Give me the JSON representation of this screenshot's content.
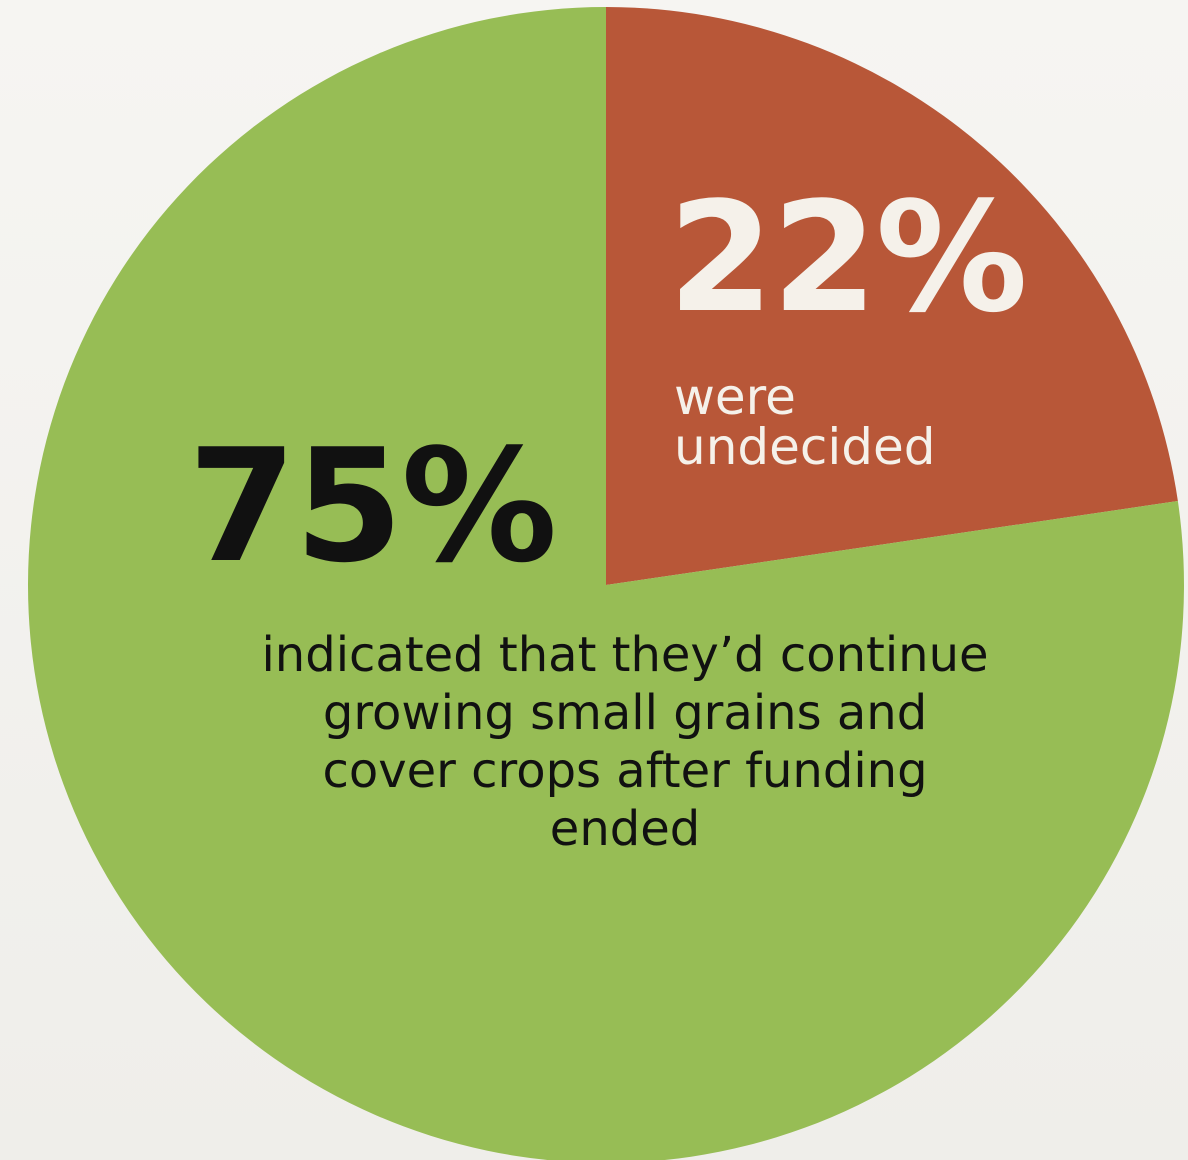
{
  "chart_data": {
    "type": "pie",
    "slices": [
      {
        "value": 22,
        "value_label": "22%",
        "description_lines": [
          "were",
          "undecided"
        ],
        "color": "#b85738"
      },
      {
        "value": 75,
        "value_label": "75%",
        "description_lines": [
          "indicated that they’d continue",
          "growing small grains and",
          "cover crops after funding",
          "ended"
        ],
        "color": "#97bd55"
      }
    ],
    "start_angle": "top",
    "direction": "clockwise"
  }
}
